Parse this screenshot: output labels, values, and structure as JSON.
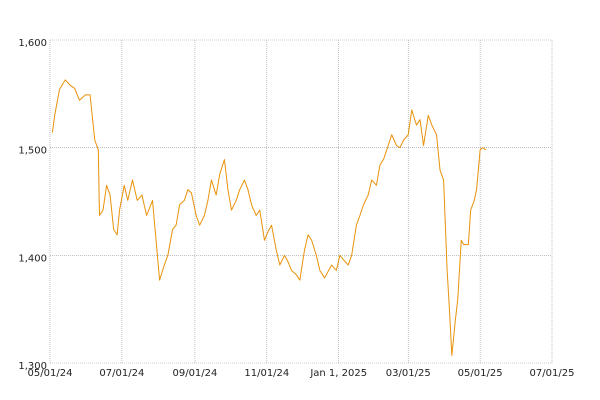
{
  "chart_data": {
    "type": "line",
    "x": [
      "2024-05-03",
      "2024-05-05",
      "2024-05-09",
      "2024-05-14",
      "2024-05-18",
      "2024-05-22",
      "2024-05-26",
      "2024-05-31",
      "2024-06-04",
      "2024-06-08",
      "2024-06-11",
      "2024-06-12",
      "2024-06-15",
      "2024-06-18",
      "2024-06-21",
      "2024-06-24",
      "2024-06-27",
      "2024-06-29",
      "2024-07-03",
      "2024-07-06",
      "2024-07-10",
      "2024-07-14",
      "2024-07-18",
      "2024-07-22",
      "2024-07-27",
      "2024-07-30",
      "2024-08-02",
      "2024-08-06",
      "2024-08-09",
      "2024-08-13",
      "2024-08-16",
      "2024-08-19",
      "2024-08-23",
      "2024-08-26",
      "2024-08-29",
      "2024-09-02",
      "2024-09-05",
      "2024-09-09",
      "2024-09-12",
      "2024-09-15",
      "2024-09-19",
      "2024-09-22",
      "2024-09-26",
      "2024-09-29",
      "2024-10-02",
      "2024-10-06",
      "2024-10-09",
      "2024-10-13",
      "2024-10-16",
      "2024-10-19",
      "2024-10-23",
      "2024-10-26",
      "2024-10-30",
      "2024-11-02",
      "2024-11-05",
      "2024-11-09",
      "2024-11-12",
      "2024-11-16",
      "2024-11-19",
      "2024-11-22",
      "2024-11-26",
      "2024-11-29",
      "2024-12-03",
      "2024-12-06",
      "2024-12-09",
      "2024-12-13",
      "2024-12-16",
      "2024-12-20",
      "2024-12-23",
      "2024-12-26",
      "2024-12-30",
      "2025-01-02",
      "2025-01-05",
      "2025-01-09",
      "2025-01-12",
      "2025-01-16",
      "2025-01-19",
      "2025-01-22",
      "2025-01-26",
      "2025-01-29",
      "2025-02-02",
      "2025-02-05",
      "2025-02-08",
      "2025-02-12",
      "2025-02-15",
      "2025-02-19",
      "2025-02-22",
      "2025-02-25",
      "2025-03-01",
      "2025-03-04",
      "2025-03-08",
      "2025-03-11",
      "2025-03-14",
      "2025-03-18",
      "2025-03-21",
      "2025-03-25",
      "2025-03-28",
      "2025-03-31",
      "2025-04-03",
      "2025-04-05",
      "2025-04-07",
      "2025-04-10",
      "2025-04-12",
      "2025-04-15",
      "2025-04-17",
      "2025-04-21",
      "2025-04-23",
      "2025-04-26",
      "2025-04-28",
      "2025-05-01",
      "2025-05-03",
      "2025-05-06"
    ],
    "series": [
      {
        "color": "#e8920a",
        "values": [
          1514,
          1530,
          1554,
          1563,
          1558,
          1555,
          1544,
          1549,
          1549,
          1507,
          1498,
          1437,
          1442,
          1465,
          1456,
          1424,
          1419,
          1442,
          1465,
          1451,
          1470,
          1451,
          1456,
          1437,
          1451,
          1414,
          1377,
          1391,
          1400,
          1424,
          1428,
          1447,
          1451,
          1461,
          1458,
          1437,
          1428,
          1437,
          1451,
          1470,
          1456,
          1475,
          1489,
          1461,
          1442,
          1451,
          1461,
          1470,
          1461,
          1447,
          1437,
          1442,
          1414,
          1422,
          1428,
          1405,
          1391,
          1400,
          1394,
          1386,
          1382,
          1377,
          1405,
          1419,
          1414,
          1400,
          1386,
          1379,
          1385,
          1391,
          1386,
          1400,
          1396,
          1391,
          1400,
          1428,
          1437,
          1447,
          1456,
          1470,
          1465,
          1484,
          1489,
          1502,
          1512,
          1502,
          1500,
          1507,
          1512,
          1535,
          1521,
          1526,
          1502,
          1530,
          1521,
          1512,
          1479,
          1470,
          1386,
          1349,
          1307,
          1340,
          1359,
          1414,
          1410,
          1410,
          1442,
          1451,
          1461,
          1498,
          1500,
          1498
        ]
      }
    ],
    "xlim": [
      "2024-05-01",
      "2025-07-01"
    ],
    "xticks": [
      {
        "value": "2024-05-01",
        "label": "05/01/24"
      },
      {
        "value": "2024-07-01",
        "label": "07/01/24"
      },
      {
        "value": "2024-09-01",
        "label": "09/01/24"
      },
      {
        "value": "2024-11-01",
        "label": "11/01/24"
      },
      {
        "value": "2025-01-01",
        "label": "Jan 1, 2025"
      },
      {
        "value": "2025-03-01",
        "label": "03/01/25"
      },
      {
        "value": "2025-05-01",
        "label": "05/01/25"
      },
      {
        "value": "2025-07-01",
        "label": "07/01/25"
      }
    ],
    "ylim": [
      1300,
      1600
    ],
    "yticks": [
      {
        "value": 1300,
        "label": "1,300"
      },
      {
        "value": 1400,
        "label": "1,400"
      },
      {
        "value": 1500,
        "label": "1,500"
      },
      {
        "value": 1600,
        "label": "1,600"
      }
    ],
    "grid": true
  }
}
